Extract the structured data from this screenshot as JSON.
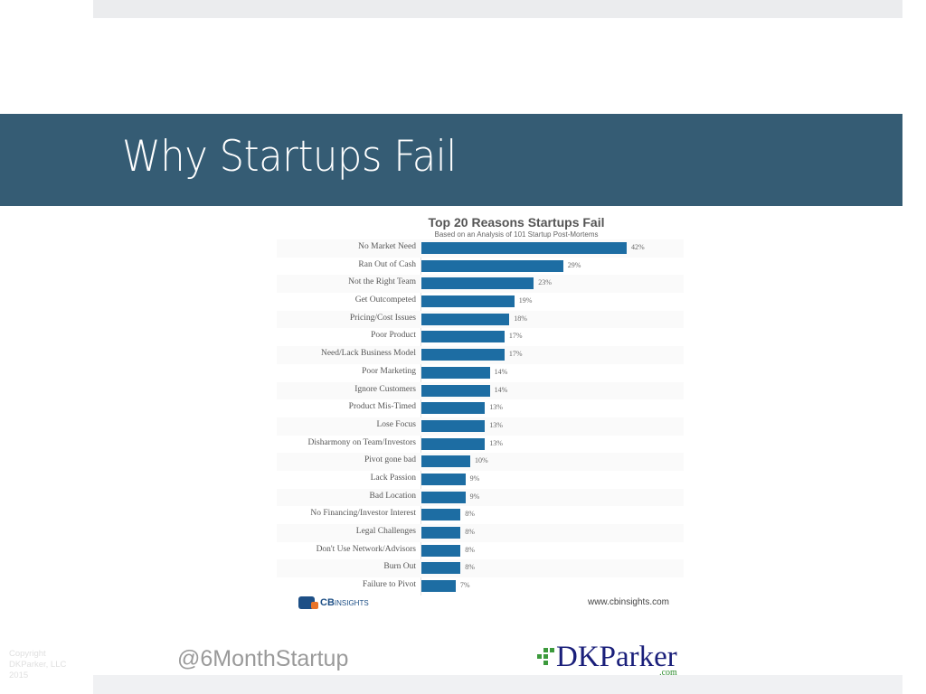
{
  "slide": {
    "title": "Why Startups Fail",
    "footer": {
      "copyright_lines": [
        "Copyright",
        "DKParker, LLC",
        "2015"
      ],
      "handle": "@6MonthStartup",
      "logo_name": "DKParker",
      "logo_suffix": ".com"
    },
    "colors": {
      "title_band": "#355c74",
      "bar": "#1d6da3"
    }
  },
  "chart_meta": {
    "source_logo_bold": "CB",
    "source_logo_light": "INSIGHTS",
    "source_url": "www.cbinsights.com"
  },
  "chart_data": {
    "type": "bar",
    "orientation": "horizontal",
    "title": "Top 20 Reasons Startups Fail",
    "subtitle": "Based on an Analysis of 101 Startup Post-Mortems",
    "xlabel": "",
    "ylabel": "",
    "unit": "%",
    "xlim": [
      0,
      42
    ],
    "grid": false,
    "legend": null,
    "categories": [
      "No Market Need",
      "Ran Out of Cash",
      "Not the Right Team",
      "Get Outcompeted",
      "Pricing/Cost Issues",
      "Poor Product",
      "Need/Lack Business Model",
      "Poor Marketing",
      "Ignore Customers",
      "Product Mis-Timed",
      "Lose Focus",
      "Disharmony on Team/Investors",
      "Pivot gone bad",
      "Lack Passion",
      "Bad Location",
      "No Financing/Investor Interest",
      "Legal Challenges",
      "Don't Use Network/Advisors",
      "Burn Out",
      "Failure to Pivot"
    ],
    "values": [
      42,
      29,
      23,
      19,
      18,
      17,
      17,
      14,
      14,
      13,
      13,
      13,
      10,
      9,
      9,
      8,
      8,
      8,
      8,
      7
    ],
    "value_labels": [
      "42%",
      "29%",
      "23%",
      "19%",
      "18%",
      "17%",
      "17%",
      "14%",
      "14%",
      "13%",
      "13%",
      "13%",
      "10%",
      "9%",
      "9%",
      "8%",
      "8%",
      "8%",
      "8%",
      "7%"
    ]
  }
}
